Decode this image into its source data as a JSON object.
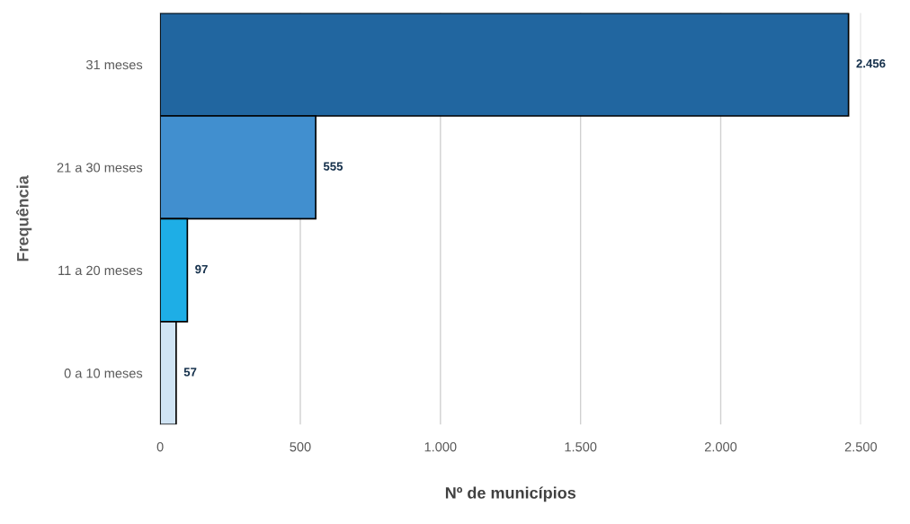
{
  "chart_data": {
    "type": "bar",
    "orientation": "horizontal",
    "xlabel": "Nº de municípios",
    "ylabel": "Frequência",
    "categories": [
      "31 meses",
      "21 a 30 meses",
      "11 a 20 meses",
      "0 a 10 meses"
    ],
    "values": [
      2456,
      555,
      97,
      57
    ],
    "colors": [
      "#2166a0",
      "#418fcf",
      "#1eaee6",
      "#d0e4f4"
    ],
    "value_labels": [
      "2.456",
      "555",
      "97",
      "57"
    ],
    "xlim": [
      0,
      2500
    ],
    "xticks": [
      0,
      500,
      {
        "value": 1000,
        "label": "1.000"
      },
      {
        "value": 1500,
        "label": "1.500"
      },
      {
        "value": 2000,
        "label": "2.000"
      },
      {
        "value": 2500,
        "label": "2.500"
      }
    ],
    "grid": "x",
    "legend": false
  }
}
